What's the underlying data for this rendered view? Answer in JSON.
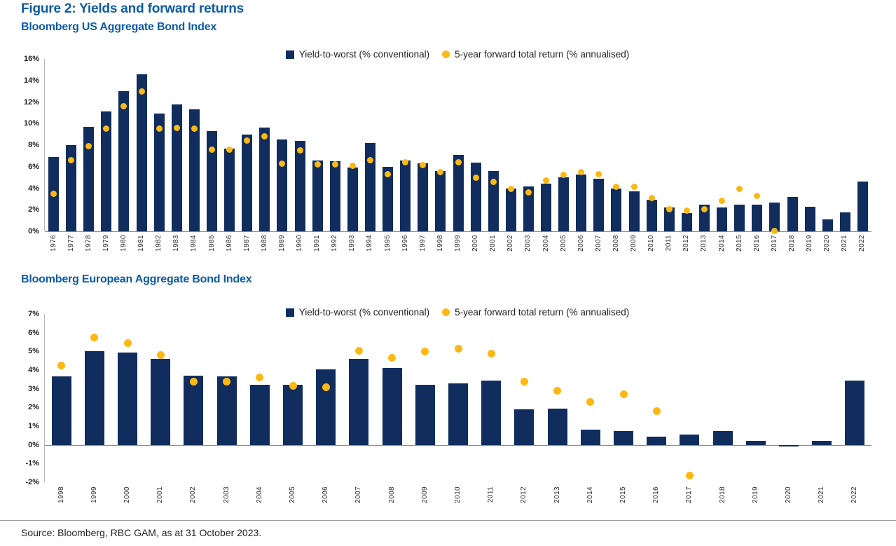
{
  "figure_title": "Figure 2: Yields and forward returns",
  "source_note": "Source: Bloomberg, RBC GAM, as at 31 October 2023.",
  "legend": {
    "bar_label": "Yield-to-worst (% conventional)",
    "dot_label": "5-year forward total return (% annualised)"
  },
  "colors": {
    "bar_navy": "#112d5e",
    "dot_yellow": "#fdb913",
    "heading_blue": "#0d5ba8",
    "axis_gray": "#8c8c8c"
  },
  "chart_data": [
    {
      "type": "bar",
      "title": "Bloomberg US Aggregate Bond Index",
      "xlabel": "",
      "ylabel": "",
      "ylim": [
        0,
        16
      ],
      "ytick_step": 2,
      "ytick_suffix": "%",
      "grid": false,
      "legend_position": "top-center",
      "categories": [
        1976,
        1977,
        1978,
        1979,
        1980,
        1981,
        1982,
        1983,
        1984,
        1985,
        1986,
        1987,
        1988,
        1989,
        1990,
        1991,
        1992,
        1993,
        1994,
        1995,
        1996,
        1997,
        1998,
        1999,
        2000,
        2001,
        2002,
        2003,
        2004,
        2005,
        2006,
        2007,
        2008,
        2009,
        2010,
        2011,
        2012,
        2013,
        2014,
        2015,
        2016,
        2017,
        2018,
        2019,
        2020,
        2021,
        2022
      ],
      "series": [
        {
          "name": "Yield-to-worst (% conventional)",
          "style": "bar",
          "values": [
            6.9,
            8.0,
            9.7,
            11.1,
            13.0,
            14.6,
            10.9,
            11.8,
            11.3,
            9.3,
            7.7,
            9.0,
            9.6,
            8.5,
            8.4,
            6.6,
            6.5,
            5.9,
            8.2,
            6.0,
            6.6,
            6.3,
            5.6,
            7.1,
            6.4,
            5.6,
            4.0,
            4.15,
            4.4,
            5.0,
            5.3,
            4.9,
            3.95,
            3.7,
            2.95,
            2.2,
            1.7,
            2.45,
            2.2,
            2.5,
            2.5,
            2.65,
            3.2,
            2.3,
            1.1,
            1.75,
            4.65
          ]
        },
        {
          "name": "5-year forward total return (% annualised)",
          "style": "scatter",
          "values": [
            3.5,
            6.6,
            7.9,
            9.5,
            11.6,
            13.0,
            9.5,
            9.6,
            9.5,
            7.6,
            7.6,
            8.4,
            8.8,
            6.3,
            7.5,
            6.2,
            6.2,
            6.1,
            6.6,
            5.3,
            6.4,
            6.15,
            5.5,
            6.4,
            5.0,
            4.6,
            3.95,
            3.6,
            4.7,
            5.25,
            5.5,
            5.3,
            4.15,
            4.1,
            3.1,
            2.05,
            1.95,
            2.05,
            2.85,
            3.95,
            3.3,
            0.05,
            null,
            null,
            null,
            null,
            null
          ]
        }
      ]
    },
    {
      "type": "bar",
      "title": "Bloomberg European Aggregate Bond Index",
      "xlabel": "",
      "ylabel": "",
      "ylim": [
        -2,
        7
      ],
      "ytick_step": 1,
      "ytick_suffix": "%",
      "grid": false,
      "legend_position": "top-center",
      "categories": [
        1998,
        1999,
        2000,
        2001,
        2002,
        2003,
        2004,
        2005,
        2006,
        2007,
        2008,
        2009,
        2010,
        2011,
        2012,
        2013,
        2014,
        2015,
        2016,
        2017,
        2018,
        2019,
        2020,
        2021,
        2022
      ],
      "series": [
        {
          "name": "Yield-to-worst (% conventional)",
          "style": "bar",
          "values": [
            3.65,
            5.0,
            4.95,
            4.6,
            3.7,
            3.65,
            3.2,
            3.2,
            4.05,
            4.6,
            4.1,
            3.2,
            3.3,
            3.45,
            1.9,
            1.95,
            0.8,
            0.75,
            0.45,
            0.55,
            0.75,
            0.2,
            -0.1,
            0.2,
            3.45
          ]
        },
        {
          "name": "5-year forward total return (% annualised)",
          "style": "scatter",
          "values": [
            4.25,
            5.75,
            5.45,
            4.8,
            3.4,
            3.4,
            3.6,
            3.15,
            3.1,
            5.05,
            4.65,
            5.0,
            5.15,
            4.9,
            3.4,
            2.9,
            2.3,
            2.7,
            1.8,
            -1.65,
            null,
            null,
            null,
            null,
            null
          ]
        }
      ]
    }
  ]
}
